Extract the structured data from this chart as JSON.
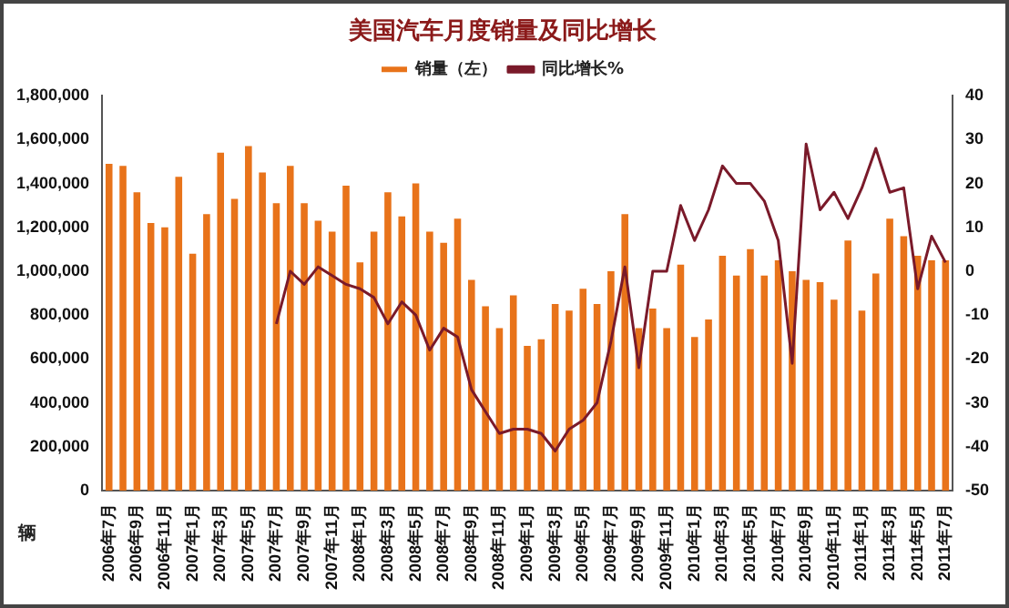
{
  "chart_data": {
    "type": "bar",
    "title": "美国汽车月度销量及同比增长",
    "ylabel": "辆",
    "categories": [
      "2006年7月",
      null,
      "2006年9月",
      null,
      "2006年11月",
      null,
      "2007年1月",
      null,
      "2007年3月",
      null,
      "2007年5月",
      null,
      "2007年7月",
      null,
      "2007年9月",
      null,
      "2007年11月",
      null,
      "2008年1月",
      null,
      "2008年3月",
      null,
      "2008年5月",
      null,
      "2008年7月",
      null,
      "2008年9月",
      null,
      "2008年11月",
      null,
      "2009年1月",
      null,
      "2009年3月",
      null,
      "2009年5月",
      null,
      "2009年7月",
      null,
      "2009年9月",
      null,
      "2009年11月",
      null,
      "2010年1月",
      null,
      "2010年3月",
      null,
      "2010年5月",
      null,
      "2010年7月",
      null,
      "2010年9月",
      null,
      "2010年11月",
      null,
      "2011年1月",
      null,
      "2011年3月",
      null,
      "2011年5月",
      null,
      "2011年7月"
    ],
    "series": [
      {
        "name": "销量（左）",
        "color": "#e8731a",
        "values": [
          1490000,
          1480000,
          1360000,
          1220000,
          1200000,
          1430000,
          1080000,
          1260000,
          1540000,
          1330000,
          1570000,
          1450000,
          1310000,
          1480000,
          1310000,
          1230000,
          1180000,
          1390000,
          1040000,
          1180000,
          1360000,
          1250000,
          1400000,
          1180000,
          1130000,
          1240000,
          960000,
          840000,
          740000,
          890000,
          660000,
          690000,
          850000,
          820000,
          920000,
          850000,
          1000000,
          1260000,
          740000,
          830000,
          740000,
          1030000,
          700000,
          780000,
          1070000,
          980000,
          1100000,
          980000,
          1050000,
          1000000,
          960000,
          950000,
          870000,
          1140000,
          820000,
          990000,
          1240000,
          1160000,
          1070000,
          1050000,
          1050000
        ]
      },
      {
        "name": "同比增长%",
        "type": "line",
        "axis": "y2",
        "color": "#7a1a2a",
        "values": [
          null,
          null,
          null,
          null,
          null,
          null,
          null,
          null,
          null,
          null,
          null,
          null,
          -12,
          0,
          -3,
          1,
          -1,
          -3,
          -4,
          -6,
          -12,
          -7,
          -10,
          -18,
          -13,
          -15,
          -27,
          -32,
          -37,
          -36,
          -36,
          -37,
          -41,
          -36,
          -34,
          -30,
          -16,
          1,
          -22,
          0,
          0,
          15,
          7,
          14,
          24,
          20,
          20,
          16,
          7,
          -21,
          29,
          14,
          18,
          12,
          19,
          28,
          18,
          19,
          -4,
          8,
          2
        ]
      }
    ],
    "ylim": [
      0,
      1800000
    ],
    "yticks": [
      {
        "value": 0,
        "label": "0"
      },
      {
        "value": 200000,
        "label": "200,000"
      },
      {
        "value": 400000,
        "label": "400,000"
      },
      {
        "value": 600000,
        "label": "600,000"
      },
      {
        "value": 800000,
        "label": "800,000"
      },
      {
        "value": 1000000,
        "label": "1,000,000"
      },
      {
        "value": 1200000,
        "label": "1,200,000"
      },
      {
        "value": 1400000,
        "label": "1,400,000"
      },
      {
        "value": 1600000,
        "label": "1,600,000"
      },
      {
        "value": 1800000,
        "label": "1,800,000"
      }
    ],
    "y2lim": [
      -50,
      40
    ],
    "y2ticks": [
      -50,
      -40,
      -30,
      -20,
      -10,
      0,
      10,
      20,
      30,
      40
    ],
    "grid": false,
    "legend": "top",
    "marker": "none"
  }
}
